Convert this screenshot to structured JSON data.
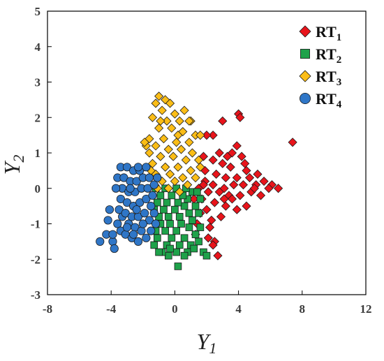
{
  "chart_data": {
    "type": "scatter",
    "title": "",
    "xlabel": "Y",
    "xlabel_sub": "1",
    "ylabel": "Y",
    "ylabel_sub": "2",
    "xlim": [
      -8,
      12
    ],
    "ylim": [
      -3,
      5
    ],
    "xticks": [
      "-8",
      "-4",
      "0",
      "4",
      "8",
      "12"
    ],
    "yticks": [
      "-3",
      "-2",
      "-1",
      "0",
      "1",
      "2",
      "3",
      "4",
      "5"
    ],
    "xtick_values": [
      -8,
      -4,
      0,
      4,
      8,
      12
    ],
    "ytick_values": [
      -3,
      -2,
      -1,
      0,
      1,
      2,
      3,
      4,
      5
    ],
    "grid": false,
    "legend_position": "top-right",
    "series": [
      {
        "name": "RT",
        "name_sub": "1",
        "marker": "diamond",
        "color": "#e8141b",
        "points": [
          [
            4.0,
            2.1
          ],
          [
            4.1,
            2.0
          ],
          [
            3.0,
            1.9
          ],
          [
            2.4,
            1.5
          ],
          [
            2.0,
            1.5
          ],
          [
            7.4,
            1.3
          ],
          [
            3.9,
            1.2
          ],
          [
            3.6,
            1.0
          ],
          [
            3.3,
            0.9
          ],
          [
            2.8,
            1.0
          ],
          [
            4.2,
            0.9
          ],
          [
            1.8,
            0.9
          ],
          [
            2.4,
            0.8
          ],
          [
            3.0,
            0.7
          ],
          [
            3.5,
            0.6
          ],
          [
            4.5,
            0.5
          ],
          [
            1.9,
            0.5
          ],
          [
            2.6,
            0.4
          ],
          [
            3.2,
            0.3
          ],
          [
            3.9,
            0.3
          ],
          [
            4.7,
            0.3
          ],
          [
            5.2,
            0.4
          ],
          [
            5.6,
            0.2
          ],
          [
            6.1,
            0.1
          ],
          [
            6.5,
            0.0
          ],
          [
            5.9,
            0.0
          ],
          [
            5.1,
            0.1
          ],
          [
            4.3,
            0.1
          ],
          [
            3.7,
            0.1
          ],
          [
            3.1,
            0.0
          ],
          [
            2.4,
            0.1
          ],
          [
            1.9,
            0.2
          ],
          [
            1.5,
            0.0
          ],
          [
            2.1,
            -0.1
          ],
          [
            2.8,
            -0.1
          ],
          [
            3.4,
            -0.2
          ],
          [
            4.1,
            -0.2
          ],
          [
            4.8,
            -0.1
          ],
          [
            5.4,
            -0.2
          ],
          [
            1.7,
            -0.3
          ],
          [
            2.5,
            -0.4
          ],
          [
            3.2,
            -0.5
          ],
          [
            3.9,
            -0.6
          ],
          [
            4.5,
            -0.5
          ],
          [
            2.0,
            -0.6
          ],
          [
            2.9,
            -0.8
          ],
          [
            3.6,
            -0.3
          ],
          [
            2.3,
            -0.9
          ],
          [
            2.2,
            -1.1
          ],
          [
            1.4,
            -1.0
          ],
          [
            1.3,
            -1.3
          ],
          [
            2.1,
            -1.4
          ],
          [
            2.5,
            -1.5
          ],
          [
            2.7,
            -1.9
          ],
          [
            2.4,
            -1.6
          ],
          [
            1.6,
            -0.7
          ],
          [
            1.2,
            -0.3
          ],
          [
            1.8,
            0.1
          ],
          [
            4.4,
            0.7
          ],
          [
            3.1,
            -0.3
          ],
          [
            5.0,
            0.0
          ]
        ]
      },
      {
        "name": "RT",
        "name_sub": "2",
        "marker": "square",
        "color": "#1ea24a",
        "points": [
          [
            0.2,
            -2.2
          ],
          [
            -0.4,
            -1.9
          ],
          [
            -0.8,
            -1.8
          ],
          [
            0.1,
            -1.8
          ],
          [
            0.8,
            -1.8
          ],
          [
            1.8,
            -1.8
          ],
          [
            2.0,
            -1.9
          ],
          [
            -1.3,
            -1.6
          ],
          [
            -0.5,
            -1.6
          ],
          [
            0.3,
            -1.6
          ],
          [
            1.0,
            -1.6
          ],
          [
            1.5,
            -1.5
          ],
          [
            -1.1,
            -1.4
          ],
          [
            -0.2,
            -1.4
          ],
          [
            0.6,
            -1.4
          ],
          [
            1.3,
            -1.3
          ],
          [
            -1.2,
            -1.2
          ],
          [
            -0.6,
            -1.2
          ],
          [
            0.1,
            -1.2
          ],
          [
            0.9,
            -1.1
          ],
          [
            1.6,
            -1.1
          ],
          [
            -0.9,
            -1.0
          ],
          [
            -0.3,
            -1.0
          ],
          [
            0.4,
            -1.0
          ],
          [
            1.1,
            -0.9
          ],
          [
            -1.0,
            -0.8
          ],
          [
            -0.4,
            -0.8
          ],
          [
            0.3,
            -0.8
          ],
          [
            0.9,
            -0.7
          ],
          [
            1.5,
            -0.7
          ],
          [
            -1.3,
            -0.6
          ],
          [
            -0.7,
            -0.6
          ],
          [
            0.0,
            -0.6
          ],
          [
            0.6,
            -0.5
          ],
          [
            1.3,
            -0.5
          ],
          [
            -1.1,
            -0.4
          ],
          [
            -0.5,
            -0.4
          ],
          [
            0.2,
            -0.4
          ],
          [
            0.8,
            -0.3
          ],
          [
            1.6,
            -0.3
          ],
          [
            -0.9,
            -0.2
          ],
          [
            -0.2,
            -0.2
          ],
          [
            0.5,
            -0.2
          ],
          [
            1.1,
            -0.1
          ],
          [
            -1.2,
            0.0
          ],
          [
            -0.6,
            0.0
          ],
          [
            0.1,
            0.0
          ],
          [
            0.7,
            0.0
          ],
          [
            1.4,
            -0.1
          ],
          [
            -0.3,
            -1.7
          ],
          [
            0.6,
            -1.9
          ],
          [
            1.2,
            -1.7
          ],
          [
            -1.0,
            -1.8
          ]
        ]
      },
      {
        "name": "RT",
        "name_sub": "3",
        "marker": "diamond",
        "color": "#fbbd16",
        "points": [
          [
            -1.0,
            2.6
          ],
          [
            -0.6,
            2.5
          ],
          [
            -1.2,
            2.4
          ],
          [
            -0.3,
            2.4
          ],
          [
            -0.8,
            2.2
          ],
          [
            0.0,
            2.1
          ],
          [
            0.6,
            2.2
          ],
          [
            -1.4,
            2.0
          ],
          [
            -0.5,
            1.9
          ],
          [
            0.3,
            1.9
          ],
          [
            1.0,
            1.9
          ],
          [
            -1.0,
            1.7
          ],
          [
            -0.2,
            1.7
          ],
          [
            0.5,
            1.6
          ],
          [
            1.3,
            1.5
          ],
          [
            1.6,
            1.5
          ],
          [
            -1.6,
            1.4
          ],
          [
            -0.7,
            1.4
          ],
          [
            0.1,
            1.3
          ],
          [
            0.9,
            1.3
          ],
          [
            -1.8,
            1.2
          ],
          [
            -1.2,
            1.2
          ],
          [
            -0.4,
            1.1
          ],
          [
            0.4,
            1.1
          ],
          [
            1.1,
            1.0
          ],
          [
            -1.6,
            1.0
          ],
          [
            -0.9,
            0.9
          ],
          [
            -0.1,
            0.9
          ],
          [
            0.7,
            0.8
          ],
          [
            1.5,
            0.8
          ],
          [
            -1.4,
            0.7
          ],
          [
            -0.6,
            0.6
          ],
          [
            0.2,
            0.6
          ],
          [
            1.0,
            0.5
          ],
          [
            -1.2,
            0.4
          ],
          [
            -0.3,
            0.4
          ],
          [
            0.5,
            0.3
          ],
          [
            1.3,
            0.3
          ],
          [
            -0.8,
            0.2
          ],
          [
            0.0,
            0.2
          ],
          [
            0.8,
            0.1
          ],
          [
            -1.5,
            0.5
          ],
          [
            -1.1,
            0.0
          ],
          [
            -0.4,
            0.0
          ],
          [
            0.3,
            -0.1
          ],
          [
            1.6,
            0.6
          ],
          [
            -0.9,
            1.9
          ],
          [
            0.2,
            1.5
          ],
          [
            -1.9,
            1.3
          ],
          [
            0.9,
            1.9
          ]
        ]
      },
      {
        "name": "RT",
        "name_sub": "4",
        "marker": "circle",
        "color": "#2f76c7",
        "points": [
          [
            -4.7,
            -1.5
          ],
          [
            -4.3,
            -1.3
          ],
          [
            -3.9,
            -1.5
          ],
          [
            -3.8,
            -1.7
          ],
          [
            -3.9,
            -1.3
          ],
          [
            -4.2,
            -0.9
          ],
          [
            -4.1,
            -0.6
          ],
          [
            -3.6,
            -1.0
          ],
          [
            -3.4,
            -1.2
          ],
          [
            -3.1,
            -1.3
          ],
          [
            -2.7,
            -1.4
          ],
          [
            -2.3,
            -1.5
          ],
          [
            -1.8,
            -1.4
          ],
          [
            -1.5,
            -1.2
          ],
          [
            -3.3,
            -0.8
          ],
          [
            -2.9,
            -1.0
          ],
          [
            -2.5,
            -1.1
          ],
          [
            -2.1,
            -1.2
          ],
          [
            -1.6,
            -0.9
          ],
          [
            -1.3,
            -0.7
          ],
          [
            -3.5,
            -0.6
          ],
          [
            -3.1,
            -0.7
          ],
          [
            -2.7,
            -0.8
          ],
          [
            -2.3,
            -0.8
          ],
          [
            -1.9,
            -0.7
          ],
          [
            -1.5,
            -0.5
          ],
          [
            -3.4,
            -0.3
          ],
          [
            -3.0,
            -0.4
          ],
          [
            -2.6,
            -0.5
          ],
          [
            -2.2,
            -0.4
          ],
          [
            -1.8,
            -0.3
          ],
          [
            -1.4,
            -0.2
          ],
          [
            -3.3,
            0.0
          ],
          [
            -2.9,
            -0.1
          ],
          [
            -2.5,
            -0.1
          ],
          [
            -2.1,
            0.0
          ],
          [
            -1.7,
            0.0
          ],
          [
            -1.3,
            0.1
          ],
          [
            -3.6,
            0.3
          ],
          [
            -3.2,
            0.3
          ],
          [
            -2.8,
            0.2
          ],
          [
            -2.4,
            0.2
          ],
          [
            -2.0,
            0.3
          ],
          [
            -1.6,
            0.3
          ],
          [
            -3.4,
            0.6
          ],
          [
            -3.0,
            0.6
          ],
          [
            -2.6,
            0.5
          ],
          [
            -2.2,
            0.5
          ],
          [
            -1.8,
            0.6
          ],
          [
            -2.8,
            0.0
          ],
          [
            -2.4,
            -0.6
          ],
          [
            -2.0,
            -1.0
          ],
          [
            -3.7,
            0.0
          ],
          [
            -1.2,
            -1.0
          ],
          [
            -2.6,
            -1.3
          ],
          [
            -3.0,
            -1.1
          ],
          [
            -1.1,
            0.3
          ],
          [
            -2.3,
            0.6
          ]
        ]
      }
    ]
  }
}
